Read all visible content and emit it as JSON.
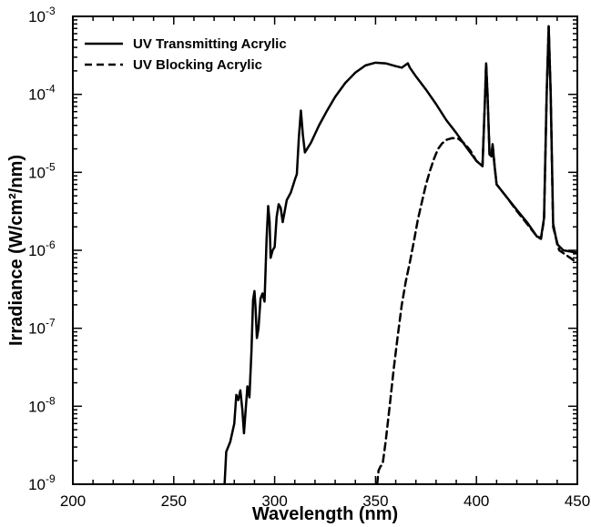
{
  "chart_data": {
    "type": "line",
    "title": "",
    "xlabel": "Wavelength (nm)",
    "ylabel": "Irradiance (W/cm²/nm)",
    "xlim": [
      200,
      450
    ],
    "ylim": [
      1e-09,
      0.001
    ],
    "yscale": "log",
    "grid": false,
    "legend_position": "top-left",
    "x_ticks": [
      {
        "value": 200,
        "label": "200"
      },
      {
        "value": 250,
        "label": "250"
      },
      {
        "value": 300,
        "label": "300"
      },
      {
        "value": 350,
        "label": "350"
      },
      {
        "value": 400,
        "label": "400"
      },
      {
        "value": 450,
        "label": "450"
      }
    ],
    "y_ticks": [
      {
        "exp": -9,
        "base": "10",
        "sup": "-9"
      },
      {
        "exp": -8,
        "base": "10",
        "sup": "-8"
      },
      {
        "exp": -7,
        "base": "10",
        "sup": "-7"
      },
      {
        "exp": -6,
        "base": "10",
        "sup": "-6"
      },
      {
        "exp": -5,
        "base": "10",
        "sup": "-5"
      },
      {
        "exp": -4,
        "base": "10",
        "sup": "-4"
      },
      {
        "exp": -3,
        "base": "10",
        "sup": "-3"
      }
    ],
    "series": [
      {
        "name": "UV Transmitting Acrylic",
        "style": "solid",
        "points": [
          [
            275.2,
            1e-09
          ],
          [
            276,
            2.6e-09
          ],
          [
            278,
            3.5e-09
          ],
          [
            280,
            6e-09
          ],
          [
            281,
            1.4e-08
          ],
          [
            282,
            1.2e-08
          ],
          [
            283,
            1.6e-08
          ],
          [
            284,
            9e-09
          ],
          [
            284.8,
            4.5e-09
          ],
          [
            285.5,
            8e-09
          ],
          [
            286.5,
            1.8e-08
          ],
          [
            287.5,
            1.3e-08
          ],
          [
            288.5,
            5e-08
          ],
          [
            289.3,
            2.3e-07
          ],
          [
            290,
            3e-07
          ],
          [
            290.5,
            1.9e-07
          ],
          [
            291.2,
            7.5e-08
          ],
          [
            292,
            1e-07
          ],
          [
            293,
            2.4e-07
          ],
          [
            294,
            2.8e-07
          ],
          [
            295,
            2.2e-07
          ],
          [
            296,
            1.4e-06
          ],
          [
            296.8,
            3.7e-06
          ],
          [
            297.5,
            2.3e-06
          ],
          [
            298,
            8e-07
          ],
          [
            299,
            1e-06
          ],
          [
            300,
            1.1e-06
          ],
          [
            301,
            2.7e-06
          ],
          [
            302,
            3.9e-06
          ],
          [
            303,
            3.5e-06
          ],
          [
            304,
            2.3e-06
          ],
          [
            306,
            4.4e-06
          ],
          [
            308,
            5.5e-06
          ],
          [
            310,
            8e-06
          ],
          [
            311,
            9.5e-06
          ],
          [
            312,
            2.8e-05
          ],
          [
            313,
            6.2e-05
          ],
          [
            314,
            3e-05
          ],
          [
            315,
            1.8e-05
          ],
          [
            318,
            2.4e-05
          ],
          [
            322,
            4e-05
          ],
          [
            326,
            6.2e-05
          ],
          [
            330,
            9.3e-05
          ],
          [
            335,
            0.00014
          ],
          [
            340,
            0.00019
          ],
          [
            345,
            0.000235
          ],
          [
            350,
            0.000255
          ],
          [
            355,
            0.00025
          ],
          [
            360,
            0.00023
          ],
          [
            363,
            0.00022
          ],
          [
            365,
            0.00024
          ],
          [
            366,
            0.00025
          ],
          [
            367,
            0.00022
          ],
          [
            370,
            0.00017
          ],
          [
            375,
            0.000115
          ],
          [
            380,
            7.5e-05
          ],
          [
            385,
            4.7e-05
          ],
          [
            390,
            3.2e-05
          ],
          [
            395,
            2.1e-05
          ],
          [
            400,
            1.4e-05
          ],
          [
            403,
            1.2e-05
          ],
          [
            404.3,
            0.0001
          ],
          [
            404.8,
            0.00025
          ],
          [
            405.5,
            0.0001
          ],
          [
            406.5,
            1.7e-05
          ],
          [
            407.5,
            1.6e-05
          ],
          [
            408,
            2.3e-05
          ],
          [
            409,
            1.2e-05
          ],
          [
            410,
            7e-06
          ],
          [
            415,
            4.8e-06
          ],
          [
            420,
            3.3e-06
          ],
          [
            425,
            2.3e-06
          ],
          [
            430,
            1.5e-06
          ],
          [
            432,
            1.45e-06
          ],
          [
            433.5,
            2.6e-06
          ],
          [
            434.8,
            0.0001
          ],
          [
            435.8,
            0.00075
          ],
          [
            436.8,
            0.0001
          ],
          [
            438,
            2.2e-06
          ],
          [
            440,
            1.2e-06
          ],
          [
            443,
            1e-06
          ],
          [
            446,
            9.7e-07
          ],
          [
            450,
            9.3e-07
          ]
        ]
      },
      {
        "name": "UV Blocking Acrylic",
        "style": "dashed",
        "points": [
          [
            350.8,
            1e-09
          ],
          [
            351.5,
            1.5e-09
          ],
          [
            352.5,
            1.7e-09
          ],
          [
            353.5,
            1.8e-09
          ],
          [
            355,
            3.5e-09
          ],
          [
            357,
            1e-08
          ],
          [
            359,
            3e-08
          ],
          [
            361,
            8e-08
          ],
          [
            363,
            2e-07
          ],
          [
            365,
            4e-07
          ],
          [
            367,
            7e-07
          ],
          [
            369,
            1.3e-06
          ],
          [
            371,
            2.5e-06
          ],
          [
            373,
            4.2e-06
          ],
          [
            375,
            7e-06
          ],
          [
            377,
            1.05e-05
          ],
          [
            379,
            1.5e-05
          ],
          [
            381,
            2e-05
          ],
          [
            383,
            2.35e-05
          ],
          [
            385,
            2.6e-05
          ],
          [
            388,
            2.75e-05
          ],
          [
            391,
            2.7e-05
          ],
          [
            394,
            2.35e-05
          ],
          [
            397,
            1.9e-05
          ],
          [
            400,
            1.4e-05
          ],
          [
            403,
            1.2e-05
          ],
          [
            404.3,
            0.0001
          ],
          [
            404.8,
            0.00025
          ],
          [
            405.5,
            0.0001
          ],
          [
            406.5,
            1.7e-05
          ],
          [
            407.5,
            1.6e-05
          ],
          [
            408,
            2.3e-05
          ],
          [
            409,
            1.2e-05
          ],
          [
            410,
            7e-06
          ],
          [
            415,
            4.8e-06
          ],
          [
            420,
            3.2e-06
          ],
          [
            425,
            2.2e-06
          ],
          [
            430,
            1.5e-06
          ],
          [
            432,
            1.4e-06
          ],
          [
            433.5,
            2.5e-06
          ],
          [
            434.8,
            0.0001
          ],
          [
            435.8,
            0.00074
          ],
          [
            436.8,
            0.0001
          ],
          [
            438,
            2e-06
          ],
          [
            441,
            1e-06
          ],
          [
            445,
            8.5e-07
          ],
          [
            448,
            7.5e-07
          ],
          [
            450,
            7e-07
          ]
        ]
      }
    ]
  }
}
